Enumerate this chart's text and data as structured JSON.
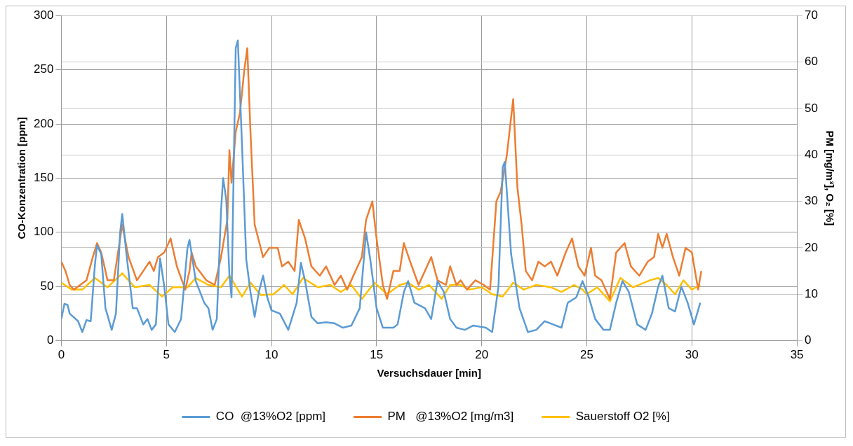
{
  "chart_data": {
    "type": "line",
    "xlabel": "Versuchsdauer [min]",
    "ylabel": "CO-Konzentration [ppm]",
    "y2label": "PM [mg/m³], O₂ [%]",
    "xlim": [
      0,
      35
    ],
    "xticks": [
      0,
      5,
      10,
      15,
      20,
      25,
      30,
      35
    ],
    "ylim": [
      0,
      300
    ],
    "yticks": [
      0,
      50,
      100,
      150,
      200,
      250,
      300
    ],
    "y2lim": [
      0,
      70
    ],
    "y2ticks": [
      0,
      10,
      20,
      30,
      40,
      50,
      60,
      70
    ],
    "grid": true,
    "legend": "bottom",
    "marker": "none",
    "line_style": "solid",
    "series": [
      {
        "name": "CO  @13%O2 [ppm]",
        "color": "#5b9bd5",
        "x": [
          0,
          0.15,
          0.3,
          0.4,
          0.8,
          1.0,
          1.2,
          1.4,
          1.6,
          1.7,
          1.9,
          2.1,
          2.4,
          2.6,
          2.8,
          2.9,
          3.1,
          3.4,
          3.6,
          3.9,
          4.1,
          4.3,
          4.5,
          4.7,
          4.9,
          5.1,
          5.4,
          5.7,
          6.0,
          6.1,
          6.4,
          6.8,
          7.0,
          7.2,
          7.4,
          7.6,
          7.7,
          7.85,
          8.0,
          8.1,
          8.3,
          8.4,
          8.6,
          8.8,
          9.0,
          9.2,
          9.4,
          9.6,
          9.8,
          10.0,
          10.4,
          10.8,
          11.2,
          11.4,
          11.6,
          11.9,
          12.2,
          12.6,
          13.0,
          13.4,
          13.8,
          14.2,
          14.5,
          14.7,
          15.0,
          15.3,
          15.8,
          16.0,
          16.3,
          16.5,
          16.8,
          17.3,
          17.6,
          17.9,
          18.2,
          18.5,
          18.8,
          19.2,
          19.6,
          20.2,
          20.5,
          20.8,
          21.0,
          21.1,
          21.4,
          21.8,
          22.2,
          22.6,
          23.0,
          23.4,
          23.8,
          24.1,
          24.5,
          24.8,
          25.1,
          25.4,
          25.8,
          26.1,
          26.4,
          26.7,
          27.0,
          27.4,
          27.8,
          28.1,
          28.4,
          28.6,
          28.9,
          29.2,
          29.5,
          29.8,
          30.1,
          30.4
        ],
        "values": [
          20,
          34,
          33,
          25,
          18,
          8,
          19,
          18,
          70,
          88,
          80,
          30,
          10,
          25,
          100,
          117,
          80,
          30,
          30,
          15,
          20,
          10,
          15,
          76,
          50,
          15,
          8,
          20,
          85,
          93,
          55,
          35,
          30,
          10,
          20,
          120,
          150,
          130,
          60,
          40,
          270,
          277,
          180,
          75,
          45,
          22,
          45,
          60,
          40,
          28,
          25,
          10,
          35,
          72,
          55,
          22,
          16,
          17,
          16,
          12,
          14,
          30,
          100,
          75,
          30,
          12,
          12,
          15,
          45,
          55,
          35,
          30,
          20,
          55,
          45,
          20,
          12,
          10,
          14,
          12,
          8,
          50,
          160,
          165,
          80,
          30,
          8,
          10,
          18,
          15,
          12,
          35,
          40,
          55,
          40,
          20,
          10,
          10,
          35,
          55,
          45,
          15,
          10,
          25,
          50,
          60,
          30,
          27,
          50,
          35,
          15,
          35
        ]
      },
      {
        "name": "PM   @13%O2 [mg/m3]",
        "color": "#ed7d31",
        "axis": "y2",
        "x": [
          0,
          0.2,
          0.4,
          0.6,
          0.9,
          1.2,
          1.5,
          1.7,
          1.9,
          2.2,
          2.5,
          2.8,
          2.9,
          3.2,
          3.6,
          3.9,
          4.2,
          4.4,
          4.6,
          4.9,
          5.2,
          5.5,
          5.9,
          6.1,
          6.2,
          6.4,
          6.9,
          7.3,
          7.6,
          7.9,
          8.0,
          8.1,
          8.3,
          8.5,
          8.7,
          8.85,
          9.0,
          9.2,
          9.6,
          9.9,
          10.3,
          10.5,
          10.8,
          11.1,
          11.3,
          11.6,
          11.9,
          12.3,
          12.6,
          13.0,
          13.3,
          13.6,
          14.0,
          14.3,
          14.5,
          14.8,
          15.0,
          15.3,
          15.5,
          15.8,
          16.1,
          16.3,
          16.6,
          17.0,
          17.3,
          17.6,
          17.9,
          18.3,
          18.5,
          18.8,
          19.0,
          19.3,
          19.7,
          20.1,
          20.4,
          20.7,
          20.9,
          21.2,
          21.5,
          21.7,
          21.9,
          22.1,
          22.4,
          22.7,
          23.0,
          23.3,
          23.6,
          24.0,
          24.3,
          24.6,
          24.9,
          25.2,
          25.4,
          25.7,
          26.1,
          26.4,
          26.6,
          26.8,
          27.1,
          27.5,
          27.9,
          28.2,
          28.4,
          28.6,
          28.8,
          29.1,
          29.4,
          29.7,
          30.0,
          30.3,
          30.45
        ],
        "values": [
          17,
          15,
          12,
          11,
          12,
          13,
          18,
          21,
          19,
          13,
          13,
          22,
          25,
          18,
          13,
          15,
          17,
          15,
          18,
          19,
          22,
          16,
          11,
          15,
          19,
          16,
          13,
          12,
          18,
          26,
          41,
          34,
          45,
          49,
          58,
          63,
          45,
          25,
          18,
          20,
          20,
          16,
          17,
          15,
          26,
          22,
          16,
          14,
          16,
          12,
          14,
          11,
          15,
          18,
          26,
          30,
          22,
          12,
          9,
          15,
          15,
          21,
          17,
          12,
          15,
          18,
          13,
          12,
          16,
          12,
          13,
          11,
          13,
          12,
          11,
          30,
          32,
          40,
          52,
          33,
          25,
          15,
          13,
          17,
          16,
          17,
          14,
          19,
          22,
          16,
          14,
          20,
          14,
          13,
          9,
          19,
          20,
          21,
          16,
          14,
          17,
          18,
          23,
          20,
          23,
          18,
          14,
          20,
          19,
          11,
          15
        ]
      },
      {
        "name": "Sauerstoff O2 [%]",
        "color": "#ffc000",
        "axis": "y2",
        "x": [
          0,
          0.5,
          1.0,
          1.6,
          2.2,
          2.9,
          3.5,
          4.2,
          4.8,
          5.3,
          6.0,
          6.4,
          7.0,
          7.6,
          8.0,
          8.6,
          9.0,
          9.5,
          10.1,
          10.6,
          11.0,
          11.5,
          12.2,
          12.8,
          13.3,
          13.8,
          14.3,
          14.9,
          15.5,
          16.1,
          16.5,
          17.0,
          17.5,
          18.1,
          18.5,
          19.0,
          19.4,
          20.0,
          20.5,
          21.0,
          21.5,
          22.0,
          22.6,
          23.3,
          23.8,
          24.4,
          24.8,
          25.0,
          25.5,
          26.1,
          26.6,
          27.2,
          28.0,
          28.4,
          28.8,
          29.2,
          29.6,
          30.0,
          30.4
        ],
        "values": [
          12.5,
          11,
          11,
          13.5,
          11.5,
          14.5,
          11.5,
          12,
          9.5,
          11.5,
          11.5,
          13.5,
          12,
          11.5,
          14,
          9.5,
          12.5,
          9.8,
          10,
          12,
          10,
          13.5,
          11.5,
          12,
          10.5,
          12,
          9,
          12.5,
          10,
          12,
          12.5,
          11,
          12,
          9,
          12,
          12,
          11,
          11.5,
          10,
          9.5,
          12.5,
          11,
          12,
          11.5,
          10.5,
          12,
          11,
          10,
          11.5,
          8.5,
          13.5,
          11.5,
          13,
          13.5,
          12,
          10,
          13,
          11,
          12
        ]
      }
    ]
  }
}
